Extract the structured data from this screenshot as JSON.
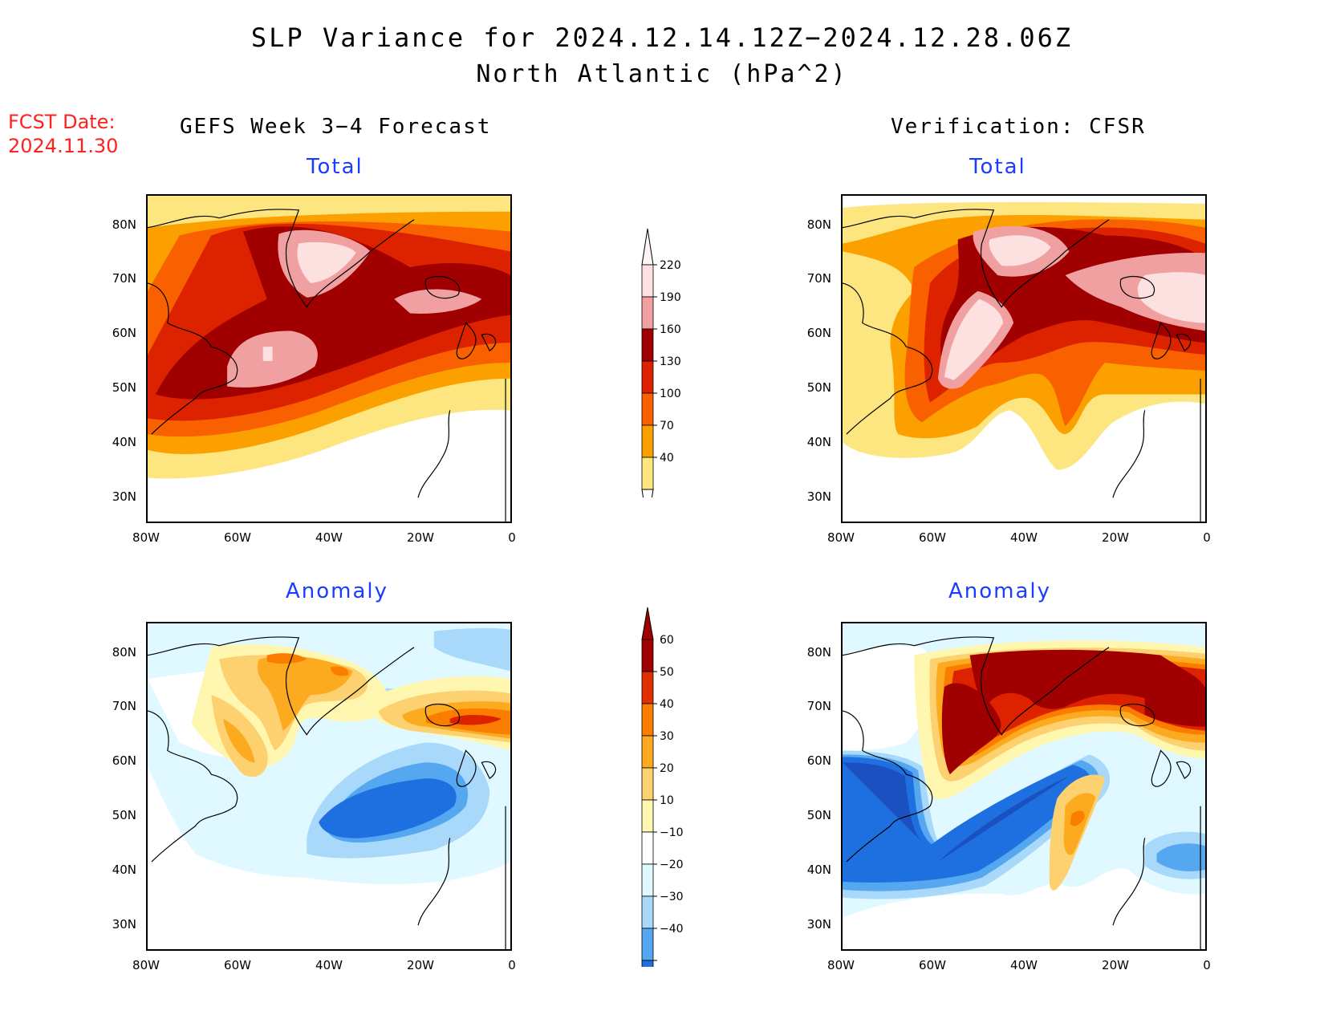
{
  "title": {
    "line1": "SLP Variance for 2024.12.14.12Z−2024.12.28.06Z",
    "line2": "North Atlantic (hPa^2)"
  },
  "fcst_date": {
    "label": "FCST Date:",
    "value": "2024.11.30"
  },
  "columns": {
    "left": "GEFS Week 3−4 Forecast",
    "right": "Verification: CFSR"
  },
  "panels": {
    "total_label": "Total",
    "anomaly_label": "Anomaly"
  },
  "axes": {
    "lat_ticks": [
      "80N",
      "70N",
      "60N",
      "50N",
      "40N",
      "30N"
    ],
    "lon_ticks": [
      "80W",
      "60W",
      "40W",
      "20W",
      "0"
    ]
  },
  "colorbars": {
    "total": {
      "levels": [
        "220",
        "190",
        "160",
        "130",
        "100",
        "70",
        "40"
      ],
      "colors": [
        "#fde0e0",
        "#f0a0a0",
        "#a00000",
        "#dd2200",
        "#f86000",
        "#fca000",
        "#fde680"
      ]
    },
    "anomaly": {
      "levels": [
        "60",
        "50",
        "40",
        "30",
        "20",
        "10",
        "−10",
        "−20",
        "−30",
        "−40"
      ],
      "colors": [
        "#a00000",
        "#e03000",
        "#fb7d00",
        "#fcab20",
        "#fdd070",
        "#fff6b0",
        "#ffffff",
        "#e0f8ff",
        "#a8d8fa",
        "#55a8f0",
        "#1e6fe0",
        "#1a50c0"
      ]
    }
  }
}
